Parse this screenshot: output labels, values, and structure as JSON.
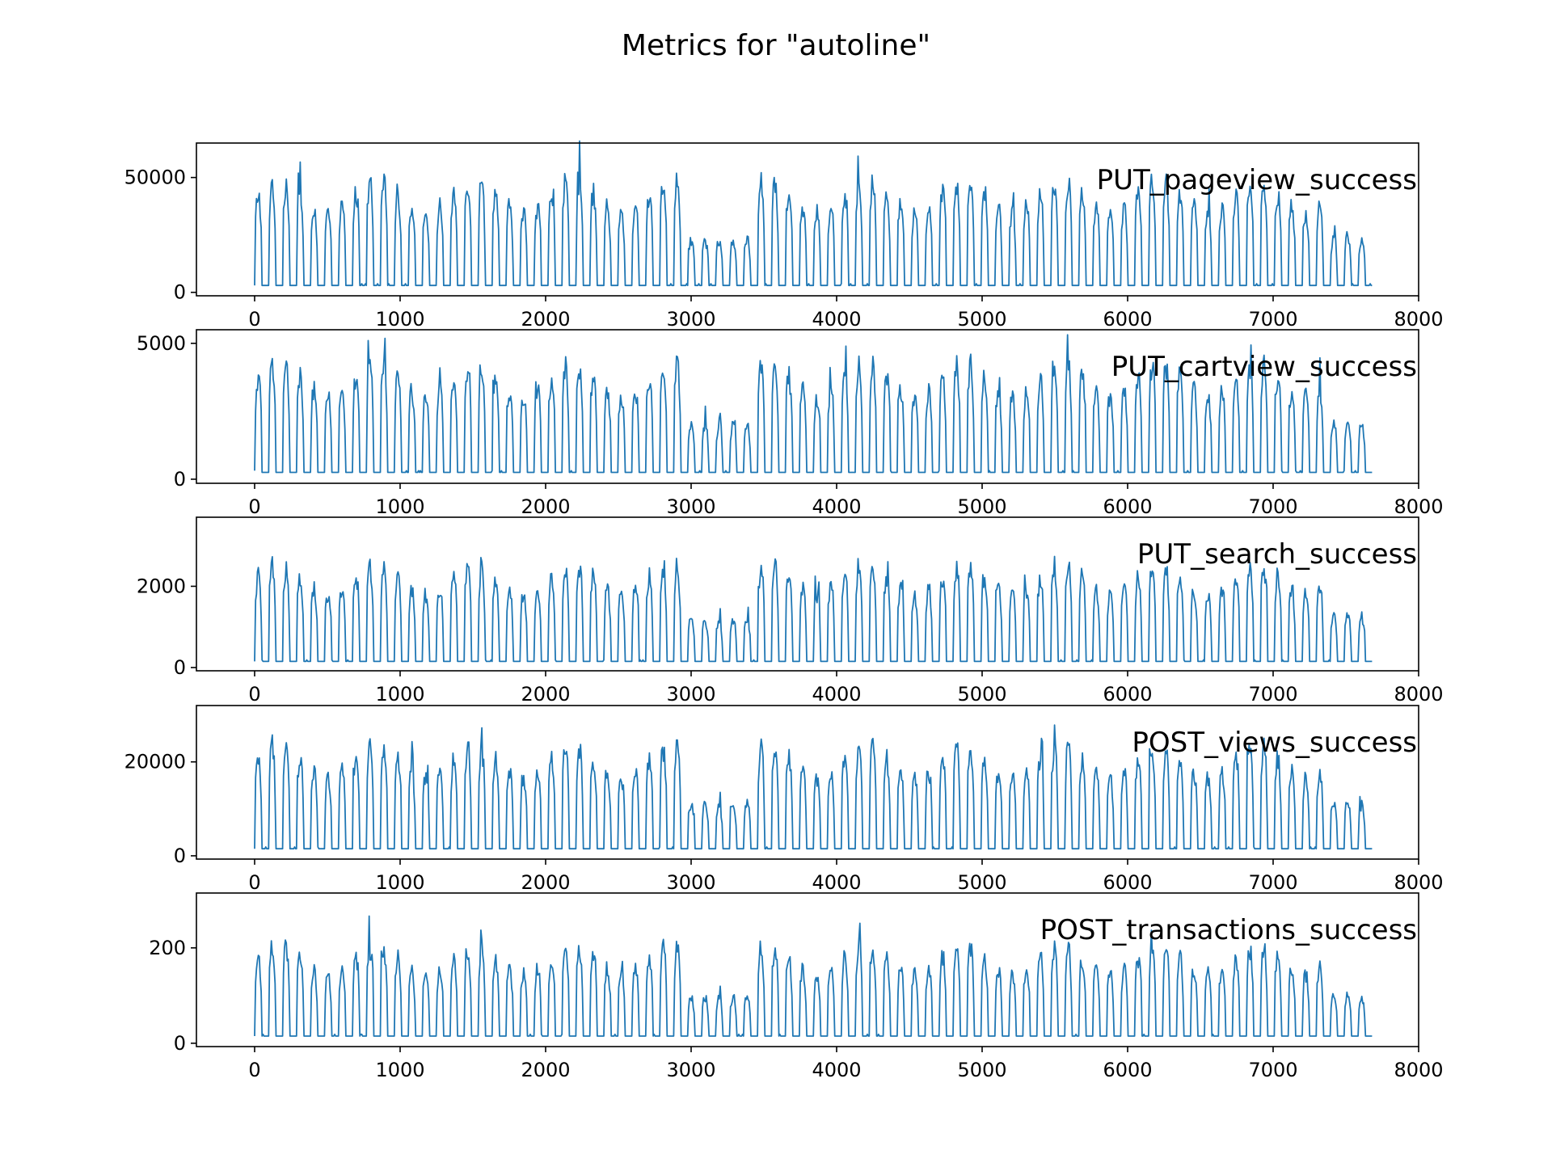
{
  "figure_title": "Metrics for \"autoline\"",
  "chart_data": [
    {
      "type": "line",
      "series_label": "PUT_pageview_success",
      "x_range": [
        0,
        7680
      ],
      "xlim": [
        -400,
        8000
      ],
      "x_ticks": [
        "0",
        "1000",
        "2000",
        "3000",
        "4000",
        "5000",
        "6000",
        "7000",
        "8000"
      ],
      "ylim": [
        -1500,
        65000
      ],
      "y_ticks": [
        "0",
        "50000"
      ],
      "y_tick_values": [
        0,
        50000
      ],
      "approx_peak": 48000,
      "approx_trough": 3000,
      "shape": "daily cycles, dip near x 3000-3300, tail decreasing",
      "color": "#1f77b4"
    },
    {
      "type": "line",
      "series_label": "PUT_cartview_success",
      "x_range": [
        0,
        7680
      ],
      "xlim": [
        -400,
        8000
      ],
      "x_ticks": [
        "0",
        "1000",
        "2000",
        "3000",
        "4000",
        "5000",
        "6000",
        "7000",
        "8000"
      ],
      "ylim": [
        -150,
        5500
      ],
      "y_ticks": [
        "0",
        "5000"
      ],
      "y_tick_values": [
        0,
        5000
      ],
      "approx_peak": 4200,
      "approx_trough": 250,
      "color": "#1f77b4"
    },
    {
      "type": "line",
      "series_label": "PUT_search_success",
      "x_range": [
        0,
        7680
      ],
      "xlim": [
        -400,
        8000
      ],
      "x_ticks": [
        "0",
        "1000",
        "2000",
        "3000",
        "4000",
        "5000",
        "6000",
        "7000",
        "8000"
      ],
      "ylim": [
        -80,
        3700
      ],
      "y_ticks": [
        "0",
        "2000"
      ],
      "y_tick_values": [
        0,
        2000
      ],
      "approx_peak": 2500,
      "approx_trough": 150,
      "color": "#1f77b4"
    },
    {
      "type": "line",
      "series_label": "POST_views_success",
      "x_range": [
        0,
        7680
      ],
      "xlim": [
        -400,
        8000
      ],
      "x_ticks": [
        "0",
        "1000",
        "2000",
        "3000",
        "4000",
        "5000",
        "6000",
        "7000",
        "8000"
      ],
      "ylim": [
        -700,
        32000
      ],
      "y_ticks": [
        "0",
        "20000"
      ],
      "y_tick_values": [
        0,
        20000
      ],
      "approx_peak": 23000,
      "approx_trough": 1500,
      "color": "#1f77b4"
    },
    {
      "type": "line",
      "series_label": "POST_transactions_success",
      "x_range": [
        0,
        7680
      ],
      "xlim": [
        -400,
        8000
      ],
      "x_ticks": [
        "0",
        "1000",
        "2000",
        "3000",
        "4000",
        "5000",
        "6000",
        "7000",
        "8000"
      ],
      "ylim": [
        -7,
        315
      ],
      "y_ticks": [
        "0",
        "200"
      ],
      "y_tick_values": [
        0,
        200
      ],
      "approx_peak": 200,
      "approx_trough": 15,
      "color": "#1f77b4"
    }
  ]
}
